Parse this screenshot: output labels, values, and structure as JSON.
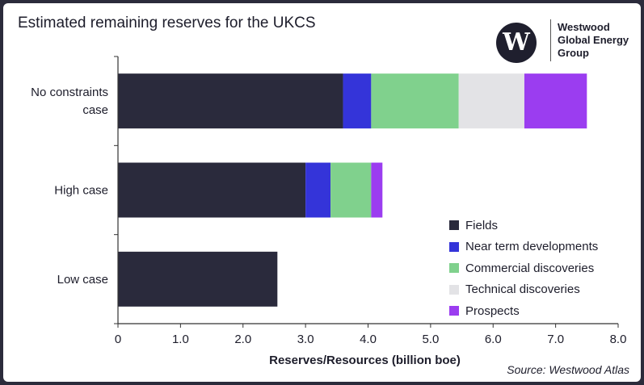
{
  "chart_data": {
    "type": "bar",
    "orientation": "horizontal",
    "stacked": true,
    "title": "Estimated remaining reserves for the UKCS",
    "xlabel": "Reserves/Resources (billion boe)",
    "ylabel": "",
    "xlim": [
      0,
      8.0
    ],
    "x_ticks": [
      "0",
      "1.0",
      "2.0",
      "3.0",
      "4.0",
      "5.0",
      "6.0",
      "7.0",
      "8.0"
    ],
    "categories": [
      "No constraints case",
      "High case",
      "Low case"
    ],
    "category_lines": [
      [
        "No constraints",
        "case"
      ],
      [
        "High case"
      ],
      [
        "Low case"
      ]
    ],
    "series": [
      {
        "name": "Fields",
        "color": "#2a2a3c",
        "values": [
          3.6,
          3.0,
          2.55
        ]
      },
      {
        "name": "Near term developments",
        "color": "#3434d9",
        "values": [
          0.45,
          0.4,
          0
        ]
      },
      {
        "name": "Commercial discoveries",
        "color": "#80d18d",
        "values": [
          1.4,
          0.65,
          0
        ]
      },
      {
        "name": "Technical discoveries",
        "color": "#e3e3e6",
        "values": [
          1.05,
          0,
          0
        ]
      },
      {
        "name": "Prospects",
        "color": "#9b3df0",
        "values": [
          1.0,
          0.18,
          0
        ]
      }
    ],
    "legend_position": "lower-right",
    "grid": false
  },
  "source": "Source: Westwood Atlas",
  "logo": {
    "mark": "W",
    "lines": [
      "Westwood",
      "Global Energy",
      "Group"
    ]
  }
}
